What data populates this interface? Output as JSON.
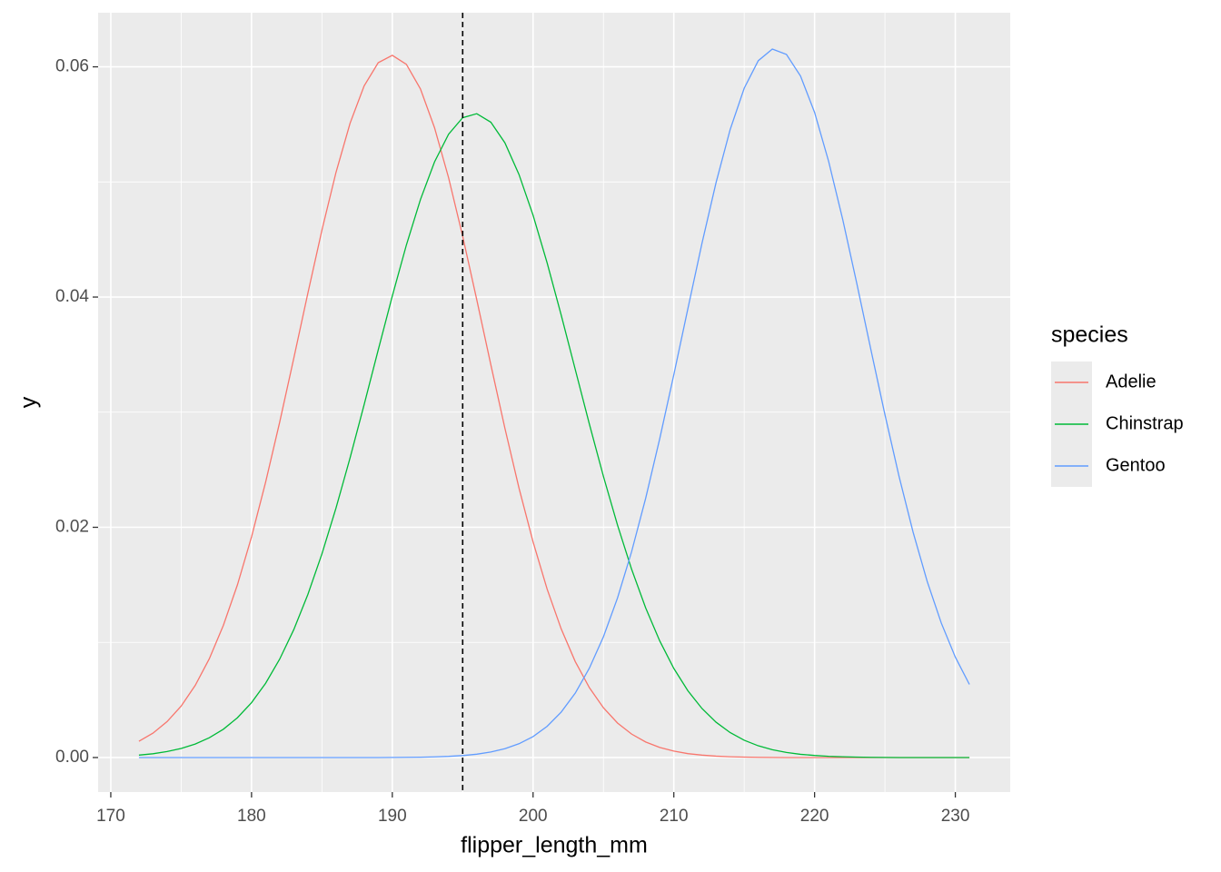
{
  "chart_data": {
    "type": "line",
    "x_label": "flipper_length_mm",
    "y_label": "y",
    "legend_title": "species",
    "legend_position": "right",
    "grid": true,
    "background": "#ebebeb",
    "vline": 195,
    "xlim": [
      169.1,
      233.9
    ],
    "ylim": [
      -0.003,
      0.0647
    ],
    "xticks": [
      170,
      180,
      190,
      200,
      210,
      220,
      230
    ],
    "yticks": [
      {
        "value": 0,
        "label": "0.00"
      },
      0.02,
      0.04,
      0.06
    ],
    "x": [
      172,
      173,
      174,
      175,
      176,
      177,
      178,
      179,
      180,
      181,
      182,
      183,
      184,
      185,
      186,
      187,
      188,
      189,
      190,
      191,
      192,
      193,
      194,
      195,
      196,
      197,
      198,
      199,
      200,
      201,
      202,
      203,
      204,
      205,
      206,
      207,
      208,
      209,
      210,
      211,
      212,
      213,
      214,
      215,
      216,
      217,
      218,
      219,
      220,
      221,
      222,
      223,
      224,
      225,
      226,
      227,
      228,
      229,
      230,
      231
    ],
    "series": [
      {
        "name": "Adelie",
        "color": "#f8766d",
        "values": [
          0.00141,
          0.00212,
          0.00312,
          0.00447,
          0.00627,
          0.00858,
          0.01149,
          0.01501,
          0.01917,
          0.02392,
          0.02914,
          0.03468,
          0.04033,
          0.04581,
          0.05083,
          0.0551,
          0.05835,
          0.06036,
          0.061,
          0.06022,
          0.05808,
          0.05471,
          0.05036,
          0.04528,
          0.03977,
          0.03412,
          0.0286,
          0.02341,
          0.01873,
          0.01463,
          0.01117,
          0.00833,
          0.00607,
          0.00432,
          0.003,
          0.00204,
          0.00135,
          0.00088,
          0.00056,
          0.00034,
          0.00021,
          0.00012,
          7e-05,
          4e-05,
          2e-05,
          1e-05,
          0,
          0,
          0,
          0,
          0,
          0,
          0,
          0,
          0,
          0,
          0,
          0,
          0,
          0
        ]
      },
      {
        "name": "Chinstrap",
        "color": "#00ba38",
        "values": [
          0.00021,
          0.00033,
          0.00052,
          0.00079,
          0.00117,
          0.00172,
          0.00246,
          0.00346,
          0.00477,
          0.00645,
          0.00855,
          0.01111,
          0.01416,
          0.01769,
          0.02167,
          0.02603,
          0.03066,
          0.03541,
          0.04009,
          0.04452,
          0.04847,
          0.05174,
          0.05415,
          0.05558,
          0.05593,
          0.05519,
          0.0534,
          0.05065,
          0.04711,
          0.04297,
          0.03843,
          0.0337,
          0.02897,
          0.02442,
          0.02019,
          0.01636,
          0.013,
          0.01013,
          0.00774,
          0.0058,
          0.00426,
          0.00307,
          0.00217,
          0.0015,
          0.00102,
          0.00068,
          0.00044,
          0.00028,
          0.00018,
          0.00011,
          7e-05,
          4e-05,
          2e-05,
          1e-05,
          0,
          0,
          0,
          0,
          0,
          0
        ]
      },
      {
        "name": "Gentoo",
        "color": "#619cff",
        "values": [
          0,
          0,
          0,
          0,
          0,
          0,
          0,
          0,
          0,
          0,
          0,
          0,
          0,
          0,
          0,
          0,
          0,
          0,
          1e-05,
          2e-05,
          3e-05,
          6e-05,
          0.0001,
          0.00017,
          0.00029,
          0.00048,
          0.00077,
          0.0012,
          0.00182,
          0.00271,
          0.00395,
          0.0056,
          0.00776,
          0.01049,
          0.01386,
          0.01788,
          0.02252,
          0.0277,
          0.03326,
          0.039,
          0.04467,
          0.04994,
          0.05454,
          0.05814,
          0.06053,
          0.06154,
          0.06108,
          0.0592,
          0.05604,
          0.05178,
          0.04674,
          0.04118,
          0.03544,
          0.02978,
          0.02443,
          0.01957,
          0.0153,
          0.01169,
          0.00872,
          0.00635
        ]
      }
    ]
  }
}
